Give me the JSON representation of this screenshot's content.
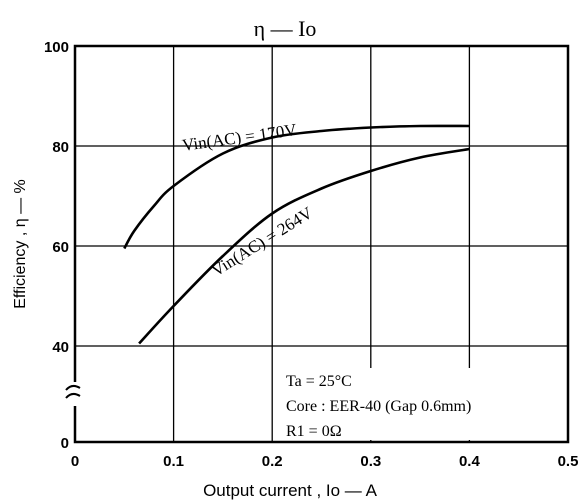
{
  "chart_data": {
    "type": "line",
    "title": "η — Io",
    "xlabel": "Output current , Io — A",
    "ylabel": "Efficiency , η — %",
    "xlim": [
      0,
      0.5
    ],
    "ylim": [
      0,
      100
    ],
    "x_ticks": [
      "0",
      "0.1",
      "0.2",
      "0.3",
      "0.4",
      "0.5"
    ],
    "y_ticks": [
      "0",
      "40",
      "60",
      "80",
      "100"
    ],
    "axis_break": "between 0 and 40 on the y axis",
    "grid": true,
    "series": [
      {
        "name": "Vin(AC) = 170V",
        "x": [
          0.05,
          0.06,
          0.08,
          0.1,
          0.15,
          0.2,
          0.25,
          0.3,
          0.35,
          0.4
        ],
        "y": [
          59.5,
          63,
          68,
          72,
          78.5,
          81.7,
          83,
          83.7,
          84,
          84
        ]
      },
      {
        "name": "Vin(AC) = 264V",
        "x": [
          0.065,
          0.1,
          0.15,
          0.2,
          0.25,
          0.3,
          0.35,
          0.4
        ],
        "y": [
          40.5,
          48,
          58,
          66.5,
          71.5,
          75,
          77.7,
          79.4
        ]
      }
    ],
    "annotations": [
      "Ta = 25°C",
      "Core : EER-40 (Gap 0.6mm)",
      "R1 = 0Ω"
    ]
  }
}
